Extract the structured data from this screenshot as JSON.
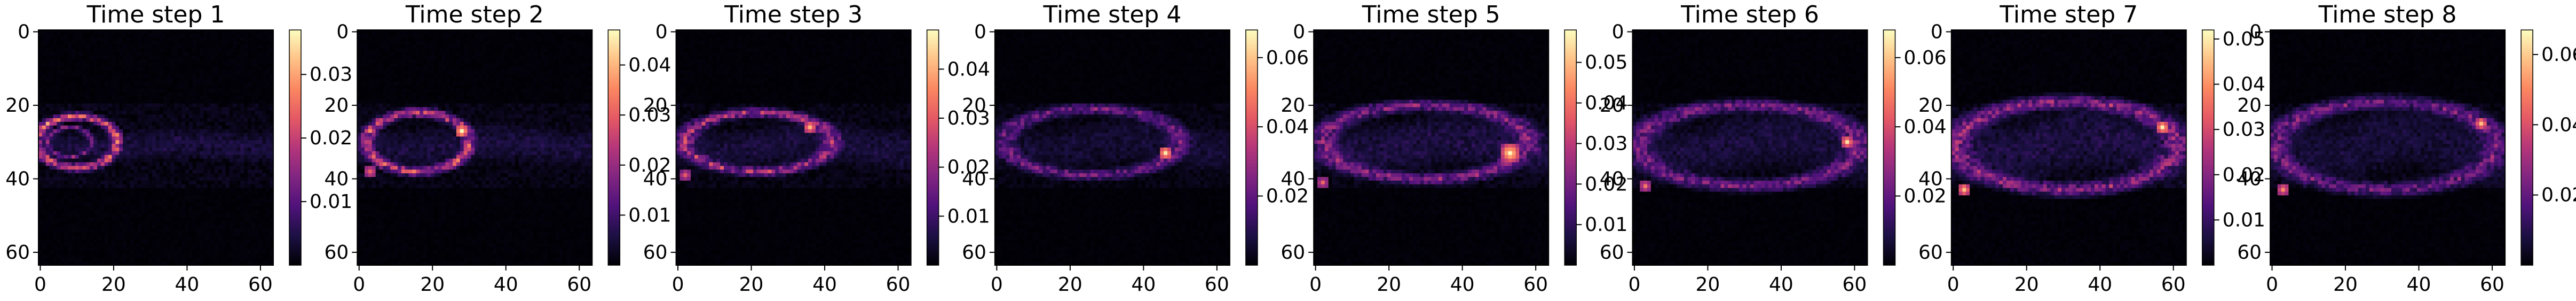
{
  "figure": {
    "panel_count": 8,
    "background": "#ffffff",
    "colormap": "magma",
    "colormap_stops": [
      "#000004",
      "#1c1044",
      "#4f127b",
      "#812581",
      "#b5367a",
      "#e55964",
      "#fb8761",
      "#fec287",
      "#fcfdbf"
    ]
  },
  "chart_data": [
    {
      "type": "heatmap",
      "title": "Time step 1",
      "xlabel": "",
      "ylabel": "",
      "grid_size": [
        64,
        64
      ],
      "xlim": [
        0,
        63
      ],
      "ylim": [
        63,
        0
      ],
      "x_ticks": [
        0,
        20,
        40,
        60
      ],
      "y_ticks": [
        0,
        20,
        40,
        60
      ],
      "x_tick_labels": [
        "0",
        "20",
        "40",
        "60"
      ],
      "y_tick_labels": [
        "0",
        "20",
        "40",
        "60"
      ],
      "colorbar": {
        "min": 0.0,
        "max": 0.037,
        "ticks": [
          0.01,
          0.02,
          0.03
        ],
        "tick_labels": [
          "0.01",
          "0.02",
          "0.03"
        ]
      },
      "features": [
        {
          "kind": "plume",
          "x_start": 0,
          "x_end": 63,
          "y_center": 31,
          "height": 9,
          "curve": 0.2,
          "value": 0.004
        },
        {
          "kind": "ring",
          "cx": 10,
          "cy": 30,
          "rx": 11,
          "ry": 7,
          "value": 0.032
        },
        {
          "kind": "ring",
          "cx": 8,
          "cy": 30,
          "rx": 6,
          "ry": 4,
          "value": 0.018
        }
      ],
      "noise": 0.0025
    },
    {
      "type": "heatmap",
      "title": "Time step 2",
      "xlabel": "",
      "ylabel": "",
      "grid_size": [
        64,
        64
      ],
      "xlim": [
        0,
        63
      ],
      "ylim": [
        63,
        0
      ],
      "x_ticks": [
        0,
        20,
        40,
        60
      ],
      "y_ticks": [
        0,
        20,
        40,
        60
      ],
      "x_tick_labels": [
        "0",
        "20",
        "40",
        "60"
      ],
      "y_tick_labels": [
        "0",
        "20",
        "40",
        "60"
      ],
      "colorbar": {
        "min": 0.0,
        "max": 0.047,
        "ticks": [
          0.01,
          0.02,
          0.03,
          0.04
        ],
        "tick_labels": [
          "0.01",
          "0.02",
          "0.03",
          "0.04"
        ]
      },
      "features": [
        {
          "kind": "plume",
          "x_start": 0,
          "x_end": 63,
          "y_center": 31,
          "height": 11,
          "curve": 0.35,
          "value": 0.005
        },
        {
          "kind": "ring",
          "cx": 16,
          "cy": 30,
          "rx": 14,
          "ry": 8,
          "value": 0.036
        },
        {
          "kind": "spot",
          "cx": 28,
          "cy": 27,
          "r": 2,
          "value": 0.045
        },
        {
          "kind": "spot",
          "cx": 3,
          "cy": 38,
          "r": 2,
          "value": 0.03
        }
      ],
      "noise": 0.003
    },
    {
      "type": "heatmap",
      "title": "Time step 3",
      "xlabel": "",
      "ylabel": "",
      "grid_size": [
        64,
        64
      ],
      "xlim": [
        0,
        63
      ],
      "ylim": [
        63,
        0
      ],
      "x_ticks": [
        0,
        20,
        40,
        60
      ],
      "y_ticks": [
        0,
        20,
        40,
        60
      ],
      "x_tick_labels": [
        "0",
        "20",
        "40",
        "60"
      ],
      "y_tick_labels": [
        "0",
        "20",
        "40",
        "60"
      ],
      "colorbar": {
        "min": 0.0,
        "max": 0.048,
        "ticks": [
          0.01,
          0.02,
          0.03,
          0.04
        ],
        "tick_labels": [
          "0.01",
          "0.02",
          "0.03",
          "0.04"
        ]
      },
      "features": [
        {
          "kind": "plume",
          "x_start": 0,
          "x_end": 63,
          "y_center": 31,
          "height": 12,
          "curve": 0.45,
          "value": 0.005
        },
        {
          "kind": "ring",
          "cx": 22,
          "cy": 30,
          "rx": 20,
          "ry": 8,
          "value": 0.03
        },
        {
          "kind": "spot",
          "cx": 36,
          "cy": 26,
          "r": 2,
          "value": 0.04
        },
        {
          "kind": "spot",
          "cx": 2,
          "cy": 39,
          "r": 2,
          "value": 0.028
        }
      ],
      "noise": 0.003
    },
    {
      "type": "heatmap",
      "title": "Time step 4",
      "xlabel": "",
      "ylabel": "",
      "grid_size": [
        64,
        64
      ],
      "xlim": [
        0,
        63
      ],
      "ylim": [
        63,
        0
      ],
      "x_ticks": [
        0,
        20,
        40,
        60
      ],
      "y_ticks": [
        0,
        20,
        40,
        60
      ],
      "x_tick_labels": [
        "0",
        "20",
        "40",
        "60"
      ],
      "y_tick_labels": [
        "0",
        "20",
        "40",
        "60"
      ],
      "colorbar": {
        "min": 0.0,
        "max": 0.068,
        "ticks": [
          0.02,
          0.04,
          0.06
        ],
        "tick_labels": [
          "0.02",
          "0.04",
          "0.06"
        ]
      },
      "features": [
        {
          "kind": "plume",
          "x_start": 0,
          "x_end": 63,
          "y_center": 31,
          "height": 13,
          "curve": 0.55,
          "value": 0.006
        },
        {
          "kind": "ring",
          "cx": 26,
          "cy": 30,
          "rx": 24,
          "ry": 9,
          "value": 0.03
        },
        {
          "kind": "spot",
          "cx": 46,
          "cy": 33,
          "r": 2,
          "value": 0.065
        }
      ],
      "noise": 0.004
    },
    {
      "type": "heatmap",
      "title": "Time step 5",
      "xlabel": "",
      "ylabel": "",
      "grid_size": [
        64,
        64
      ],
      "xlim": [
        0,
        63
      ],
      "ylim": [
        63,
        0
      ],
      "x_ticks": [
        0,
        20,
        40,
        60
      ],
      "y_ticks": [
        0,
        20,
        40,
        60
      ],
      "x_tick_labels": [
        "0",
        "20",
        "40",
        "60"
      ],
      "y_tick_labels": [
        "0",
        "20",
        "40",
        "60"
      ],
      "colorbar": {
        "min": 0.0,
        "max": 0.058,
        "ticks": [
          0.01,
          0.02,
          0.03,
          0.04,
          0.05
        ],
        "tick_labels": [
          "0.01",
          "0.02",
          "0.03",
          "0.04",
          "0.05"
        ]
      },
      "features": [
        {
          "kind": "plume",
          "x_start": 0,
          "x_end": 63,
          "y_center": 31,
          "height": 15,
          "curve": 0.65,
          "value": 0.007
        },
        {
          "kind": "ring",
          "cx": 30,
          "cy": 30,
          "rx": 28,
          "ry": 10,
          "value": 0.03
        },
        {
          "kind": "spot",
          "cx": 53,
          "cy": 33,
          "r": 3,
          "value": 0.055
        },
        {
          "kind": "spot",
          "cx": 2,
          "cy": 41,
          "r": 2,
          "value": 0.035
        }
      ],
      "noise": 0.004
    },
    {
      "type": "heatmap",
      "title": "Time step 6",
      "xlabel": "",
      "ylabel": "",
      "grid_size": [
        64,
        64
      ],
      "xlim": [
        0,
        63
      ],
      "ylim": [
        63,
        0
      ],
      "x_ticks": [
        0,
        20,
        40,
        60
      ],
      "y_ticks": [
        0,
        20,
        40,
        60
      ],
      "x_tick_labels": [
        "0",
        "20",
        "40",
        "60"
      ],
      "y_tick_labels": [
        "0",
        "20",
        "40",
        "60"
      ],
      "colorbar": {
        "min": 0.0,
        "max": 0.068,
        "ticks": [
          0.02,
          0.04,
          0.06
        ],
        "tick_labels": [
          "0.02",
          "0.04",
          "0.06"
        ]
      },
      "features": [
        {
          "kind": "plume",
          "x_start": 0,
          "x_end": 63,
          "y_center": 31,
          "height": 17,
          "curve": 0.8,
          "value": 0.007
        },
        {
          "kind": "ring",
          "cx": 31,
          "cy": 31,
          "rx": 30,
          "ry": 11,
          "value": 0.032
        },
        {
          "kind": "spot",
          "cx": 58,
          "cy": 30,
          "r": 2,
          "value": 0.06
        },
        {
          "kind": "spot",
          "cx": 3,
          "cy": 42,
          "r": 2,
          "value": 0.045
        }
      ],
      "noise": 0.0045
    },
    {
      "type": "heatmap",
      "title": "Time step 7",
      "xlabel": "",
      "ylabel": "",
      "grid_size": [
        64,
        64
      ],
      "xlim": [
        0,
        63
      ],
      "ylim": [
        63,
        0
      ],
      "x_ticks": [
        0,
        20,
        40,
        60
      ],
      "y_ticks": [
        0,
        20,
        40,
        60
      ],
      "x_tick_labels": [
        "0",
        "20",
        "40",
        "60"
      ],
      "y_tick_labels": [
        "0",
        "20",
        "40",
        "60"
      ],
      "colorbar": {
        "min": 0.0,
        "max": 0.052,
        "ticks": [
          0.01,
          0.02,
          0.03,
          0.04,
          0.05
        ],
        "tick_labels": [
          "0.01",
          "0.02",
          "0.03",
          "0.04",
          "0.05"
        ]
      },
      "features": [
        {
          "kind": "plume",
          "x_start": 0,
          "x_end": 63,
          "y_center": 31,
          "height": 19,
          "curve": 0.9,
          "value": 0.006
        },
        {
          "kind": "ring",
          "cx": 31,
          "cy": 31,
          "rx": 30,
          "ry": 12,
          "value": 0.028
        },
        {
          "kind": "spot",
          "cx": 57,
          "cy": 26,
          "r": 2,
          "value": 0.05
        },
        {
          "kind": "spot",
          "cx": 3,
          "cy": 43,
          "r": 2,
          "value": 0.045
        }
      ],
      "noise": 0.004
    },
    {
      "type": "heatmap",
      "title": "Time step 8",
      "xlabel": "",
      "ylabel": "",
      "grid_size": [
        64,
        64
      ],
      "xlim": [
        0,
        63
      ],
      "ylim": [
        63,
        0
      ],
      "x_ticks": [
        0,
        20,
        40,
        60
      ],
      "y_ticks": [
        0,
        20,
        40,
        60
      ],
      "x_tick_labels": [
        "0",
        "20",
        "40",
        "60"
      ],
      "y_tick_labels": [
        "0",
        "20",
        "40",
        "60"
      ],
      "colorbar": {
        "min": 0.0,
        "max": 0.067,
        "ticks": [
          0.02,
          0.04,
          0.06
        ],
        "tick_labels": [
          "0.02",
          "0.04",
          "0.06"
        ]
      },
      "features": [
        {
          "kind": "plume",
          "x_start": 0,
          "x_end": 63,
          "y_center": 31,
          "height": 20,
          "curve": 1.0,
          "value": 0.006
        },
        {
          "kind": "ring",
          "cx": 31,
          "cy": 31,
          "rx": 30,
          "ry": 12,
          "value": 0.03
        },
        {
          "kind": "spot",
          "cx": 57,
          "cy": 25,
          "r": 2,
          "value": 0.055
        },
        {
          "kind": "spot",
          "cx": 3,
          "cy": 43,
          "r": 2,
          "value": 0.05
        }
      ],
      "noise": 0.0045
    }
  ]
}
